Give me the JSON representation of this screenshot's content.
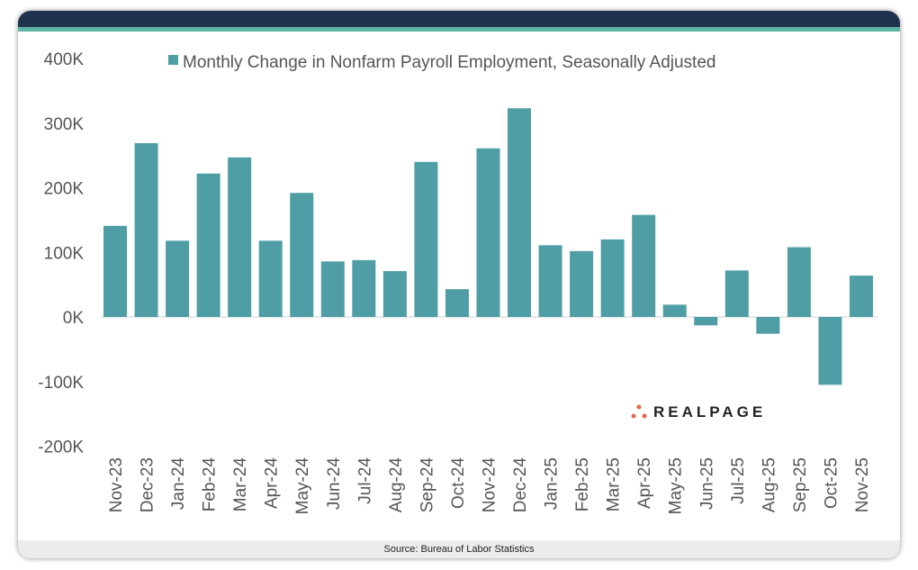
{
  "source": "Source: Bureau of Labor Statistics",
  "logo": "REALPAGE",
  "colors": {
    "bar": "#4f9ea6",
    "header": "#1e324d",
    "stripe": "#5fb3a3",
    "logo_dots": "#e8664a"
  },
  "chart_data": {
    "type": "bar",
    "title": "",
    "legend": [
      "Monthly Change in Nonfarm Payroll Employment, Seasonally Adjusted"
    ],
    "legend_position": "top",
    "xlabel": "",
    "ylabel": "",
    "ylim": [
      -200,
      400
    ],
    "yticks": [
      400,
      300,
      200,
      100,
      0,
      -100,
      -200
    ],
    "ytick_labels": [
      "400K",
      "300K",
      "200K",
      "100K",
      "0K",
      "-100K",
      "-200K"
    ],
    "categories": [
      "Nov-23",
      "Dec-23",
      "Jan-24",
      "Feb-24",
      "Mar-24",
      "Apr-24",
      "May-24",
      "Jun-24",
      "Jul-24",
      "Aug-24",
      "Sep-24",
      "Oct-24",
      "Nov-24",
      "Dec-24",
      "Jan-25",
      "Feb-25",
      "Mar-25",
      "Apr-25",
      "May-25",
      "Jun-25",
      "Jul-25",
      "Aug-25",
      "Sep-25",
      "Oct-25",
      "Nov-25"
    ],
    "values": [
      141,
      269,
      118,
      222,
      247,
      118,
      192,
      86,
      88,
      71,
      240,
      43,
      261,
      323,
      111,
      102,
      120,
      158,
      19,
      -13,
      72,
      -26,
      108,
      -105,
      64
    ],
    "units": "thousands"
  }
}
